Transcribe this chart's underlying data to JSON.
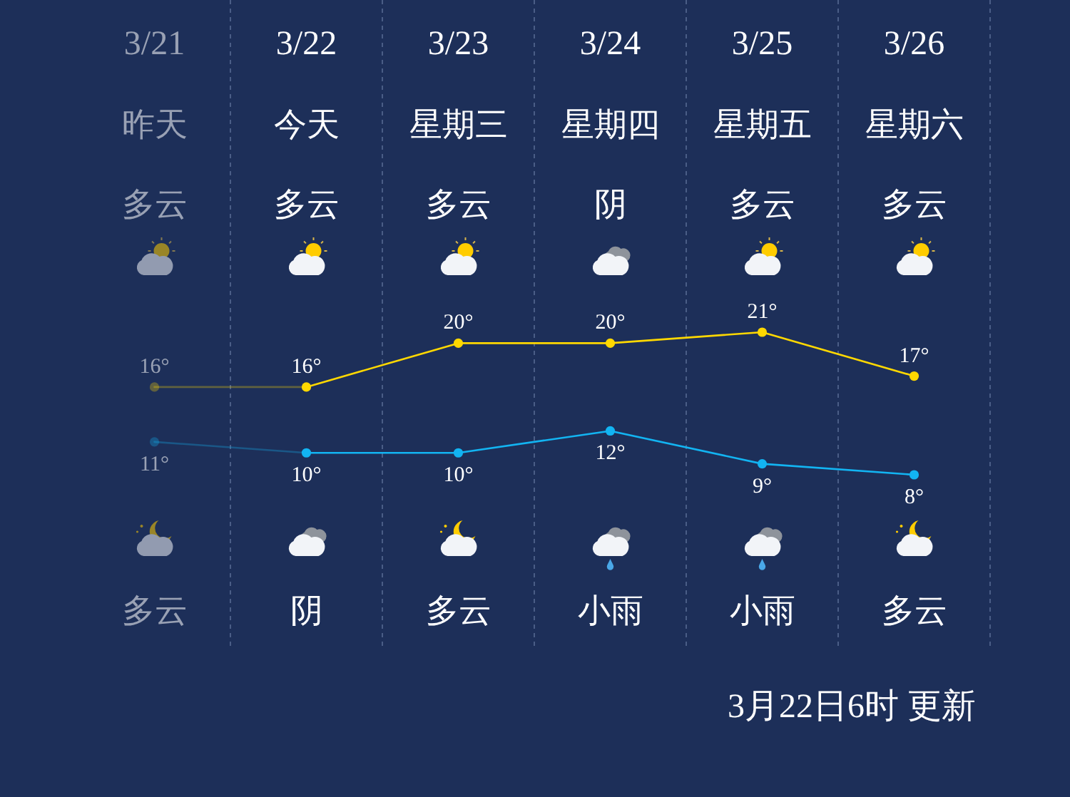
{
  "chart_data": {
    "type": "line",
    "categories": [
      "3/21",
      "3/22",
      "3/23",
      "3/24",
      "3/25",
      "3/26"
    ],
    "tick_labels": "x",
    "grid": "x",
    "marker": "circle",
    "series": [
      {
        "color": "#ffd800",
        "values": [
          16,
          16,
          20,
          20,
          21,
          17
        ],
        "value_labels": [
          "16°",
          "16°",
          "20°",
          "20°",
          "21°",
          "17°"
        ]
      },
      {
        "color": "#12b4f2",
        "values": [
          11,
          10,
          10,
          12,
          9,
          8
        ],
        "value_labels": [
          "11°",
          "10°",
          "10°",
          "12°",
          "9°",
          "8°"
        ]
      }
    ],
    "annotations": [
      "昨天",
      "今天",
      "星期三",
      "星期四",
      "星期五",
      "星期六",
      "多云",
      "多云",
      "多云",
      "阴",
      "多云",
      "多云",
      "多云",
      "阴",
      "多云",
      "小雨",
      "小雨",
      "多云",
      "3月22日6时 更新"
    ]
  }
}
